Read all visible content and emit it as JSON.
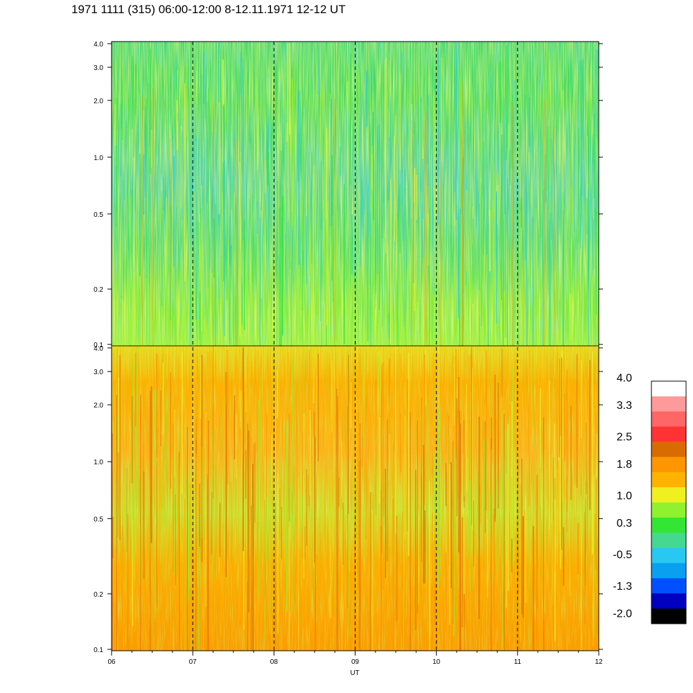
{
  "title": "1971 1111 (315) 06:00-12:00 8-12.11.1971  12-12 UT",
  "chart_data": [
    {
      "type": "heatmap",
      "panel": "upper",
      "x_range": [
        6,
        12
      ],
      "y_scale": "log",
      "y_range": [
        0.1,
        4.0
      ],
      "y_ticks": [
        "4.0",
        "3.0",
        "2.0",
        "1.0",
        "0.5",
        "0.2",
        "0.1"
      ],
      "y_tick_values": [
        4.0,
        3.0,
        2.0,
        1.0,
        0.5,
        0.2,
        0.1
      ],
      "value_range_estimate": [
        -1.3,
        1.8
      ],
      "dominant_colors": [
        "#33e633",
        "#90f22e",
        "#45d88f",
        "#28c8f0",
        "#f0f030"
      ],
      "dashed_vertical_lines_at": [
        7,
        8,
        9,
        10,
        11
      ]
    },
    {
      "type": "heatmap",
      "panel": "lower",
      "x_range": [
        6,
        12
      ],
      "y_scale": "log",
      "y_range": [
        0.1,
        4.0
      ],
      "y_ticks": [
        "4.0",
        "3.0",
        "2.0",
        "1.0",
        "0.5",
        "0.2",
        "0.1"
      ],
      "y_tick_values": [
        4.0,
        3.0,
        2.0,
        1.0,
        0.5,
        0.2,
        0.1
      ],
      "value_range_estimate": [
        0.3,
        2.5
      ],
      "dominant_colors": [
        "#ffb300",
        "#ff9500",
        "#f0f030",
        "#90f22e",
        "#d96c00"
      ],
      "dashed_vertical_lines_at": [
        7,
        8,
        9,
        10,
        11
      ]
    }
  ],
  "x_axis": {
    "label": "UT",
    "ticks": [
      "06",
      "07",
      "08",
      "09",
      "10",
      "11",
      "12"
    ],
    "tick_values": [
      6,
      7,
      8,
      9,
      10,
      11,
      12
    ]
  },
  "colorbar": {
    "labels": [
      "4.0",
      "3.3",
      "2.5",
      "1.8",
      "1.0",
      "0.3",
      "-0.5",
      "-1.3",
      "-2.0"
    ],
    "label_values": [
      4.0,
      3.3,
      2.5,
      1.8,
      1.0,
      0.3,
      -0.5,
      -1.3,
      -2.0
    ],
    "colors_top_to_bottom": [
      "#ffffff",
      "#ff9a9a",
      "#ff6666",
      "#ff3333",
      "#d96c00",
      "#ff9500",
      "#ffb300",
      "#f0f020",
      "#90f22e",
      "#33e633",
      "#45d88f",
      "#28c8f0",
      "#0aa0f0",
      "#0050ff",
      "#0000c0",
      "#000000"
    ]
  }
}
